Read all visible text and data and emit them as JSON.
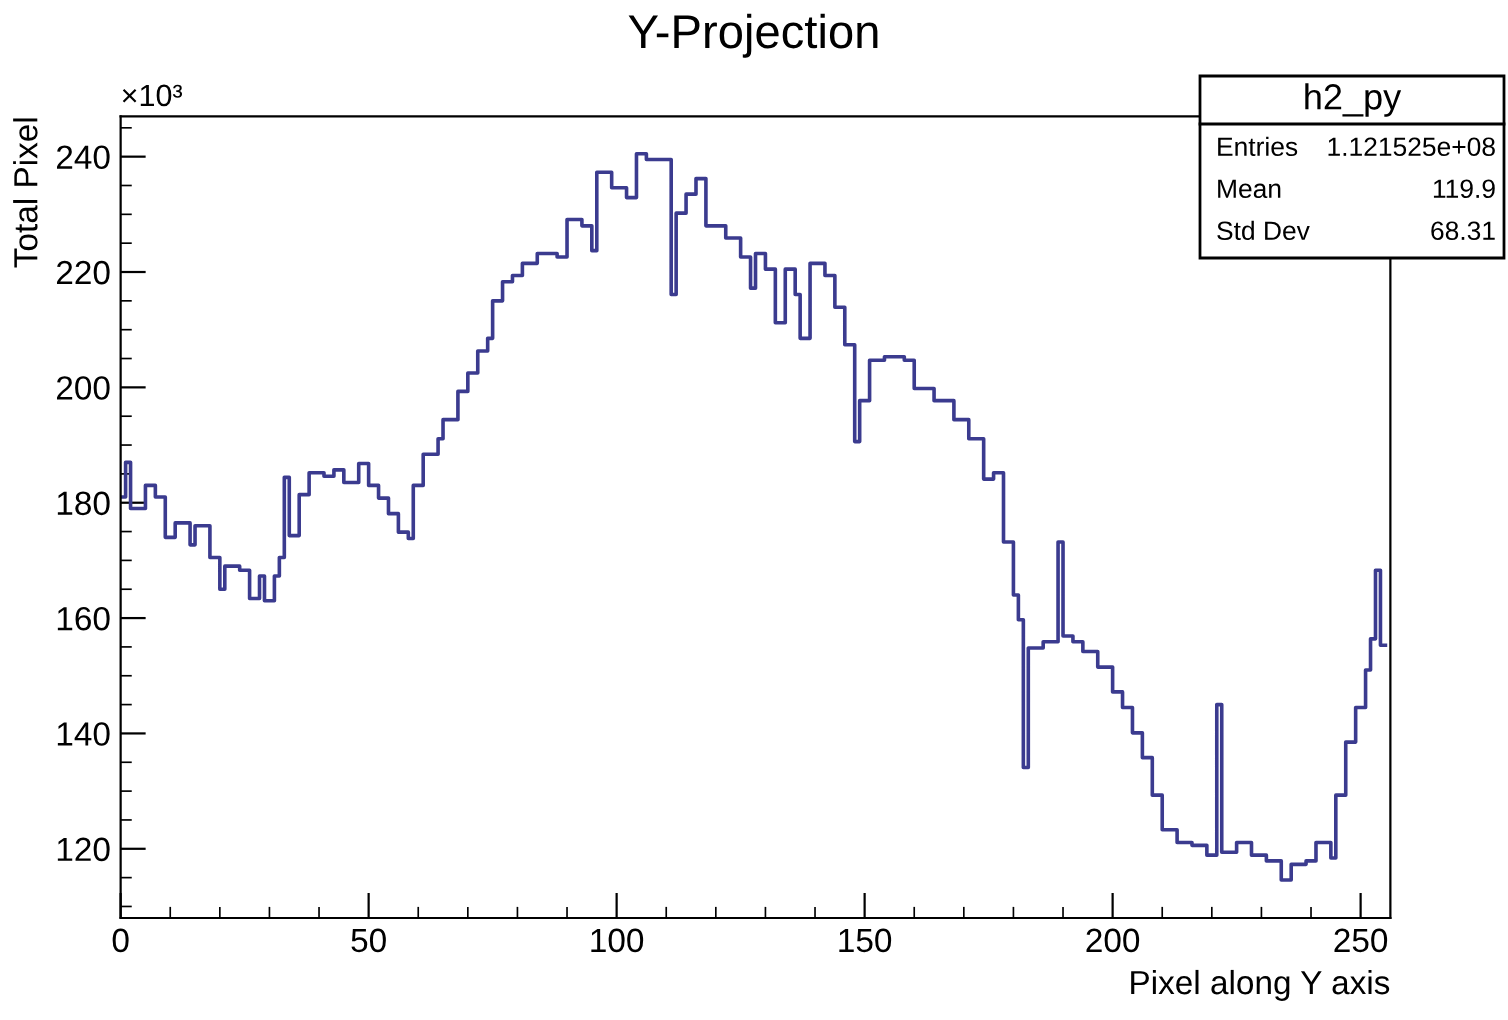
{
  "chart_data": {
    "type": "step",
    "title": "Y-Projection",
    "xlabel": "Pixel along Y axis",
    "ylabel": "Total Pixel",
    "annotations": [
      "×10³",
      "h2_py",
      "Entries",
      "1.121525e+08",
      "Mean",
      "119.9",
      "Std Dev",
      "68.31"
    ],
    "series": [
      {
        "color": "#3b3b8f",
        "x": [
          0,
          1,
          2,
          5,
          7,
          9,
          11,
          14,
          15,
          18,
          20,
          21,
          24,
          26,
          28,
          29,
          31,
          32,
          33,
          34,
          36,
          38,
          41,
          43,
          45,
          48,
          50,
          52,
          54,
          56,
          58,
          59,
          61,
          64,
          65,
          68,
          70,
          72,
          74,
          75,
          77,
          79,
          81,
          84,
          88,
          90,
          93,
          95,
          96,
          99,
          102,
          104,
          106,
          111,
          112,
          114,
          116,
          118,
          122,
          125,
          127,
          128,
          130,
          132,
          134,
          136,
          137,
          139,
          142,
          144,
          146,
          148,
          149,
          151,
          154,
          158,
          160,
          164,
          168,
          171,
          174,
          176,
          178,
          180,
          181,
          182,
          183,
          186,
          189,
          190,
          192,
          194,
          197,
          200,
          202,
          204,
          206,
          208,
          210,
          213,
          216,
          219,
          221,
          222,
          225,
          228,
          231,
          234,
          236,
          239,
          241,
          244,
          245,
          247,
          249,
          251,
          252,
          253,
          254,
          255
        ],
        "values": [
          181,
          187,
          179,
          183,
          181,
          174,
          176.5,
          172.7,
          176,
          170.5,
          165,
          169,
          168.3,
          163.4,
          167.3,
          163,
          167.3,
          170.5,
          184.4,
          174.3,
          181.4,
          185.2,
          184.6,
          185.7,
          183.5,
          186.8,
          183,
          180.8,
          178.1,
          174.9,
          173.8,
          183,
          188.4,
          191.1,
          194.4,
          199.3,
          202.5,
          206.3,
          208.5,
          215,
          218.3,
          219.4,
          221.5,
          223.2,
          222.6,
          229.1,
          228,
          223.7,
          237.3,
          234.6,
          232.9,
          240.5,
          239.5,
          216.1,
          230.2,
          233.5,
          236.2,
          228,
          225.9,
          222.6,
          217.2,
          223.2,
          220.5,
          211.2,
          220.5,
          216.1,
          208.5,
          221.5,
          219.4,
          213.9,
          207.4,
          190.6,
          197.7,
          204.7,
          205.3,
          204.7,
          199.8,
          197.7,
          194.4,
          191.1,
          184.1,
          185.2,
          173.2,
          164,
          159.7,
          134.1,
          154.8,
          155.9,
          173.2,
          156.9,
          155.9,
          154.2,
          151.5,
          147.2,
          144.5,
          140.1,
          135.8,
          129.3,
          123.3,
          121.1,
          120.6,
          118.9,
          145,
          119.4,
          121.1,
          118.9,
          117.9,
          114.6,
          117.3,
          117.9,
          121.1,
          118.4,
          129.3,
          138.5,
          144.5,
          151,
          156.4,
          168.3,
          155.3,
          155.3
        ]
      }
    ],
    "xlim": [
      0,
      256
    ],
    "xticks": [
      0,
      50,
      100,
      150,
      200,
      250
    ],
    "ylim": [
      108,
      247
    ],
    "yticks": [
      120,
      140,
      160,
      180,
      200,
      220,
      240
    ],
    "grid": false
  }
}
